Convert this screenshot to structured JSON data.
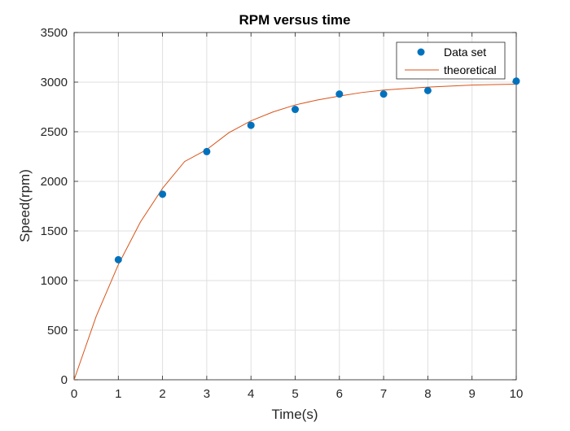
{
  "chart_data": {
    "type": "scatter",
    "title": "RPM versus time",
    "xlabel": "Time(s)",
    "ylabel": "Speed(rpm)",
    "xlim": [
      0,
      10
    ],
    "ylim": [
      0,
      3500
    ],
    "xticks": [
      0,
      1,
      2,
      3,
      4,
      5,
      6,
      7,
      8,
      9,
      10
    ],
    "yticks": [
      0,
      500,
      1000,
      1500,
      2000,
      2500,
      3000,
      3500
    ],
    "grid": true,
    "legend_position": "top-right",
    "series": [
      {
        "name": "Data set",
        "kind": "scatter",
        "color": "#0072bd",
        "x": [
          1,
          2,
          3,
          4,
          5,
          6,
          7,
          8,
          10
        ],
        "y": [
          1210,
          1870,
          2300,
          2565,
          2725,
          2880,
          2880,
          2915,
          3010
        ]
      },
      {
        "name": "theoretical",
        "kind": "line",
        "color": "#d95319",
        "x": [
          0,
          0.5,
          1,
          1.5,
          2,
          2.5,
          3,
          3.5,
          4,
          4.5,
          5,
          5.5,
          6,
          6.5,
          7,
          7.5,
          8,
          8.5,
          9,
          9.5,
          10
        ],
        "y": [
          0,
          640,
          1160,
          1590,
          1930,
          2200,
          2320,
          2490,
          2610,
          2700,
          2770,
          2820,
          2860,
          2895,
          2920,
          2935,
          2950,
          2960,
          2970,
          2975,
          2980
        ]
      }
    ]
  }
}
